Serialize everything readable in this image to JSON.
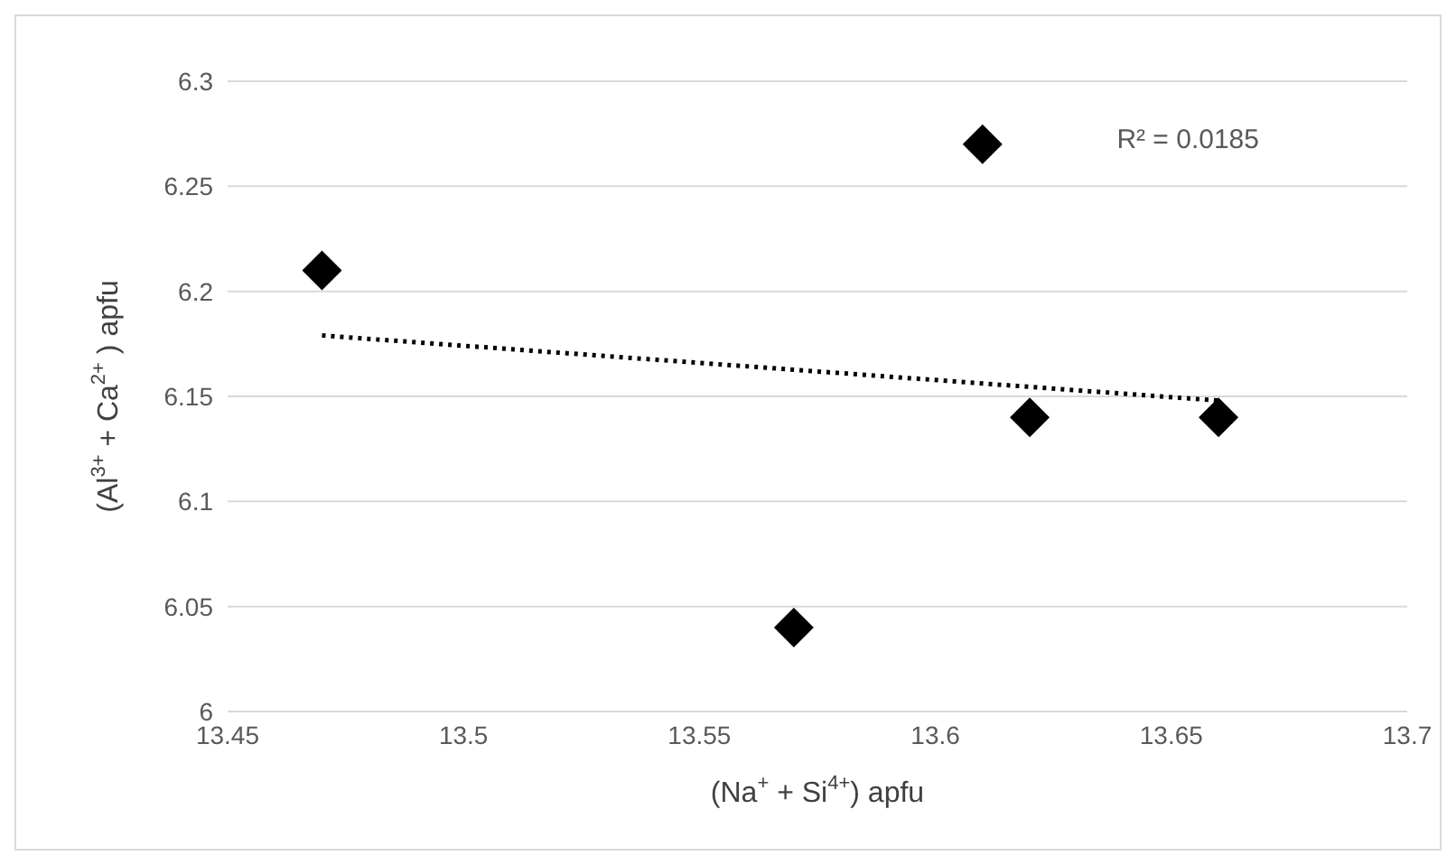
{
  "chart_data": {
    "type": "scatter",
    "xlabel": "(Na$^{+}$ + Si$^{4+}$) apfu",
    "ylabel": "(Al$^{3+}$ + Ca$^{2+}$ ) apfu",
    "x": [
      13.47,
      13.61,
      13.62,
      13.66,
      13.57
    ],
    "series": [
      {
        "type": "scatter",
        "color": "#000000",
        "marker": "diamond",
        "values": [
          6.21,
          6.27,
          6.14,
          6.14,
          6.04
        ]
      },
      {
        "type": "line",
        "x": [
          13.47,
          13.66
        ],
        "values": [
          6.179,
          6.148
        ],
        "color": "#000000",
        "line_style": "dotted",
        "marker": "none"
      }
    ],
    "xlim": [
      13.45,
      13.7
    ],
    "xticks": [
      13.45,
      13.5,
      13.55,
      13.6,
      13.65,
      13.7
    ],
    "ylim": [
      6,
      6.3
    ],
    "yticks": [
      6,
      6.05,
      6.1,
      6.15,
      6.2,
      6.25,
      6.3
    ],
    "grid": "y",
    "annotations": [
      "R² = 0.0185"
    ]
  }
}
